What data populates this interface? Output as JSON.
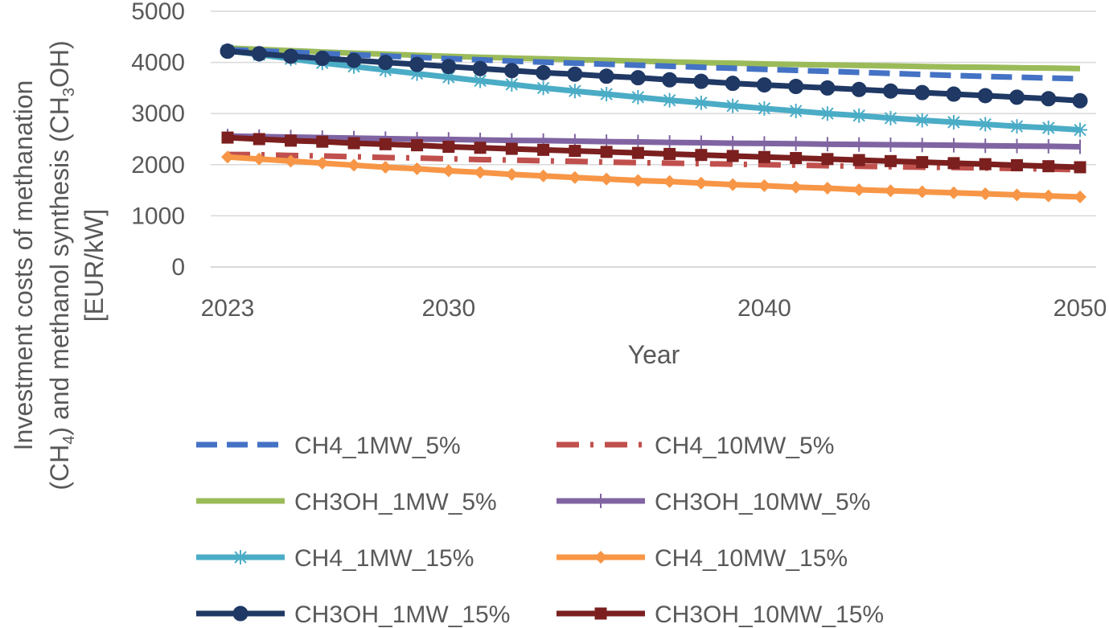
{
  "chart_data": {
    "type": "line",
    "xlabel": "Year",
    "ylabel": {
      "line1": "Investment costs of methanation",
      "line2_a": "(CH",
      "line2_sub1": "4",
      "line2_b": ") and methanol synthesis (CH",
      "line2_sub2": "3",
      "line2_c": "OH)",
      "line3": "[EUR/kW]"
    },
    "xlim": [
      2023,
      2050
    ],
    "ylim": [
      0,
      5000
    ],
    "x_ticks": [
      2023,
      2030,
      2040,
      2050
    ],
    "y_ticks": [
      0,
      1000,
      2000,
      3000,
      4000,
      5000
    ],
    "grid": "horizontal",
    "legend_position": "bottom",
    "x": [
      2023,
      2024,
      2025,
      2026,
      2027,
      2028,
      2029,
      2030,
      2031,
      2032,
      2033,
      2034,
      2035,
      2036,
      2037,
      2038,
      2039,
      2040,
      2041,
      2042,
      2043,
      2044,
      2045,
      2046,
      2047,
      2048,
      2049,
      2050
    ],
    "series": [
      {
        "name": "CH4_1MW_5%",
        "color": "#4472C4",
        "style": "dash",
        "marker": "none",
        "values": [
          4250,
          4225,
          4200,
          4175,
          4150,
          4125,
          4100,
          4075,
          4050,
          4025,
          4005,
          3985,
          3965,
          3945,
          3925,
          3905,
          3885,
          3865,
          3845,
          3825,
          3805,
          3785,
          3765,
          3745,
          3725,
          3710,
          3695,
          3680
        ]
      },
      {
        "name": "CH4_10MW_5%",
        "color": "#C0504D",
        "style": "dashdot",
        "marker": "none",
        "values": [
          2200,
          2195,
          2180,
          2170,
          2155,
          2140,
          2130,
          2115,
          2100,
          2090,
          2075,
          2065,
          2050,
          2040,
          2030,
          2020,
          2010,
          2000,
          1990,
          1980,
          1970,
          1960,
          1950,
          1945,
          1935,
          1925,
          1915,
          1900
        ]
      },
      {
        "name": "CH3OH_1MW_5%",
        "color": "#9BBB59",
        "style": "solid",
        "marker": "none",
        "values": [
          4280,
          4255,
          4230,
          4205,
          4180,
          4160,
          4140,
          4120,
          4100,
          4085,
          4070,
          4055,
          4040,
          4025,
          4010,
          3995,
          3985,
          3970,
          3960,
          3950,
          3940,
          3930,
          3920,
          3910,
          3905,
          3895,
          3890,
          3880
        ]
      },
      {
        "name": "CH3OH_10MW_5%",
        "color": "#8064A2",
        "style": "solid",
        "marker": "plus",
        "values": [
          2560,
          2550,
          2540,
          2530,
          2520,
          2510,
          2500,
          2495,
          2485,
          2475,
          2470,
          2460,
          2450,
          2445,
          2435,
          2430,
          2420,
          2415,
          2410,
          2400,
          2395,
          2390,
          2385,
          2380,
          2370,
          2365,
          2360,
          2350
        ]
      },
      {
        "name": "CH4_1MW_15%",
        "color": "#4BACC6",
        "style": "solid",
        "marker": "asterisk",
        "values": [
          4230,
          4150,
          4070,
          3990,
          3920,
          3850,
          3780,
          3710,
          3640,
          3570,
          3500,
          3440,
          3380,
          3320,
          3260,
          3210,
          3150,
          3100,
          3050,
          3000,
          2960,
          2910,
          2870,
          2830,
          2790,
          2750,
          2720,
          2680
        ]
      },
      {
        "name": "CH4_10MW_15%",
        "color": "#F79646",
        "style": "solid",
        "marker": "diamond",
        "values": [
          2150,
          2110,
          2070,
          2030,
          1990,
          1950,
          1920,
          1880,
          1850,
          1810,
          1780,
          1750,
          1720,
          1690,
          1670,
          1640,
          1610,
          1590,
          1560,
          1540,
          1510,
          1490,
          1470,
          1450,
          1430,
          1410,
          1390,
          1370
        ]
      },
      {
        "name": "CH3OH_1MW_15%",
        "color": "#1F3864",
        "style": "solid",
        "marker": "circle",
        "values": [
          4220,
          4170,
          4120,
          4080,
          4040,
          4000,
          3960,
          3920,
          3880,
          3840,
          3800,
          3770,
          3730,
          3700,
          3660,
          3630,
          3590,
          3560,
          3530,
          3500,
          3470,
          3440,
          3410,
          3380,
          3350,
          3320,
          3290,
          3250
        ]
      },
      {
        "name": "CH3OH_10MW_15%",
        "color": "#7B1F1F",
        "style": "solid",
        "marker": "square",
        "values": [
          2530,
          2500,
          2470,
          2450,
          2420,
          2400,
          2380,
          2350,
          2330,
          2310,
          2290,
          2270,
          2250,
          2230,
          2210,
          2190,
          2170,
          2150,
          2130,
          2110,
          2090,
          2070,
          2050,
          2030,
          2010,
          1990,
          1970,
          1950
        ]
      }
    ]
  }
}
